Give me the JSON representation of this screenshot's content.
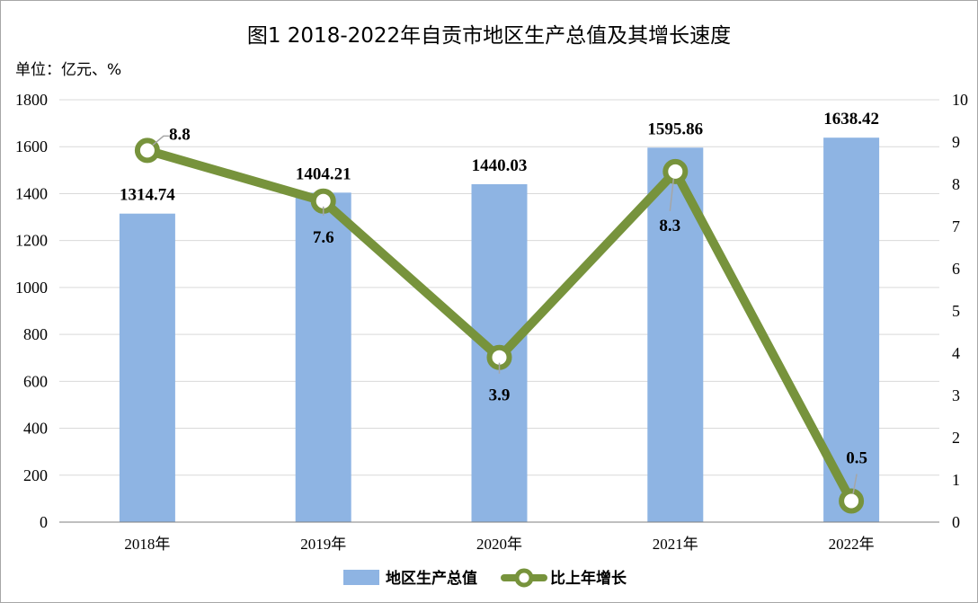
{
  "chart_data": {
    "type": "bar+line",
    "title": "图1  2018-2022年自贡市地区生产总值及其增长速度",
    "unit_label": "单位：亿元、%",
    "categories": [
      "2018年",
      "2019年",
      "2020年",
      "2021年",
      "2022年"
    ],
    "series": [
      {
        "name": "地区生产总值",
        "type": "bar",
        "axis": "left",
        "values": [
          1314.74,
          1404.21,
          1440.03,
          1595.86,
          1638.42
        ],
        "color": "#8eb4e3"
      },
      {
        "name": "比上年增长",
        "type": "line",
        "axis": "right",
        "values": [
          8.8,
          7.6,
          3.9,
          8.3,
          0.5
        ],
        "color": "#77933c"
      }
    ],
    "y_left": {
      "min": 0,
      "max": 1800,
      "step": 200,
      "ticks": [
        "0",
        "200",
        "400",
        "600",
        "800",
        "1000",
        "1200",
        "1400",
        "1600",
        "1800"
      ]
    },
    "y_right": {
      "min": 0,
      "max": 10,
      "step": 1,
      "ticks": [
        "0",
        "1",
        "2",
        "3",
        "4",
        "5",
        "6",
        "7",
        "8",
        "9",
        "10"
      ]
    },
    "bar_labels": [
      "1314.74",
      "1404.21",
      "1440.03",
      "1595.86",
      "1638.42"
    ],
    "line_labels": [
      "8.8",
      "7.6",
      "3.9",
      "8.3",
      "0.5"
    ],
    "grid": true,
    "legend": {
      "placement": "bottom",
      "entries": [
        "地区生产总值",
        "比上年增长"
      ]
    }
  }
}
